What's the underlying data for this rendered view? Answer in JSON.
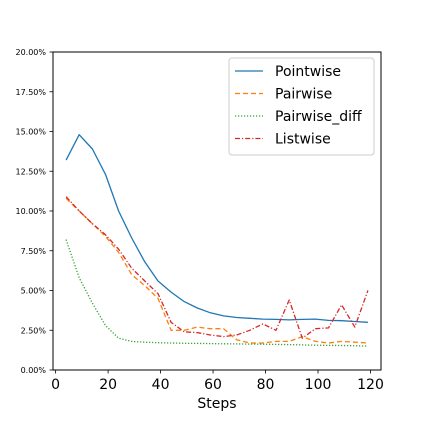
{
  "chart_data": {
    "type": "line",
    "title": "",
    "xlabel": "Steps",
    "ylabel": "",
    "xlim": [
      -1,
      124
    ],
    "ylim": [
      0,
      0.2
    ],
    "xticks": [
      0,
      20,
      40,
      60,
      80,
      100,
      120
    ],
    "xtick_labels": [
      "0",
      "20",
      "40",
      "60",
      "80",
      "100",
      "120"
    ],
    "yticks": [
      0,
      0.025,
      0.05,
      0.075,
      0.1,
      0.125,
      0.15,
      0.175,
      0.2
    ],
    "ytick_labels": [
      "0.00%",
      "2.50%",
      "5.00%",
      "7.50%",
      "10.00%",
      "12.50%",
      "15.00%",
      "17.50%",
      "20.00%"
    ],
    "grid": false,
    "legend_position": "top-right",
    "series": [
      {
        "name": "Pointwise",
        "color": "#1f77b4",
        "style": "solid",
        "x": [
          4,
          9,
          14,
          19,
          24,
          29,
          34,
          39,
          44,
          49,
          54,
          59,
          64,
          69,
          74,
          79,
          84,
          89,
          94,
          99,
          104,
          109,
          114,
          119
        ],
        "y": [
          0.132,
          0.148,
          0.139,
          0.123,
          0.1,
          0.083,
          0.068,
          0.056,
          0.049,
          0.043,
          0.039,
          0.036,
          0.034,
          0.033,
          0.0325,
          0.032,
          0.0318,
          0.0315,
          0.0318,
          0.032,
          0.0312,
          0.031,
          0.0305,
          0.03
        ]
      },
      {
        "name": "Pairwise",
        "color": "#ff7f0e",
        "style": "dashed",
        "x": [
          4,
          9,
          14,
          19,
          24,
          29,
          34,
          39,
          44,
          49,
          54,
          59,
          64,
          69,
          74,
          79,
          84,
          89,
          94,
          99,
          104,
          109,
          114,
          119
        ],
        "y": [
          0.108,
          0.1,
          0.092,
          0.084,
          0.074,
          0.06,
          0.053,
          0.045,
          0.025,
          0.025,
          0.027,
          0.026,
          0.026,
          0.019,
          0.017,
          0.017,
          0.018,
          0.018,
          0.021,
          0.018,
          0.017,
          0.018,
          0.0175,
          0.017
        ]
      },
      {
        "name": "Pairwise_diff",
        "color": "#2ca02c",
        "style": "dotted",
        "x": [
          4,
          9,
          14,
          19,
          24,
          29,
          34,
          39,
          44,
          49,
          54,
          59,
          64,
          69,
          74,
          79,
          84,
          89,
          94,
          99,
          104,
          109,
          114,
          119
        ],
        "y": [
          0.082,
          0.058,
          0.042,
          0.028,
          0.02,
          0.018,
          0.0175,
          0.0172,
          0.017,
          0.0168,
          0.0167,
          0.0166,
          0.0165,
          0.0164,
          0.0163,
          0.0162,
          0.0161,
          0.016,
          0.0158,
          0.0156,
          0.0155,
          0.0154,
          0.0152,
          0.015
        ]
      },
      {
        "name": "Listwise",
        "color": "#d62728",
        "style": "dashdot",
        "x": [
          4,
          9,
          14,
          19,
          24,
          29,
          34,
          39,
          44,
          49,
          54,
          59,
          64,
          69,
          74,
          79,
          84,
          89,
          94,
          99,
          104,
          109,
          114,
          119
        ],
        "y": [
          0.109,
          0.1,
          0.092,
          0.085,
          0.076,
          0.064,
          0.056,
          0.048,
          0.03,
          0.024,
          0.0235,
          0.022,
          0.021,
          0.022,
          0.025,
          0.029,
          0.025,
          0.044,
          0.02,
          0.026,
          0.0265,
          0.041,
          0.027,
          0.05
        ]
      }
    ]
  }
}
